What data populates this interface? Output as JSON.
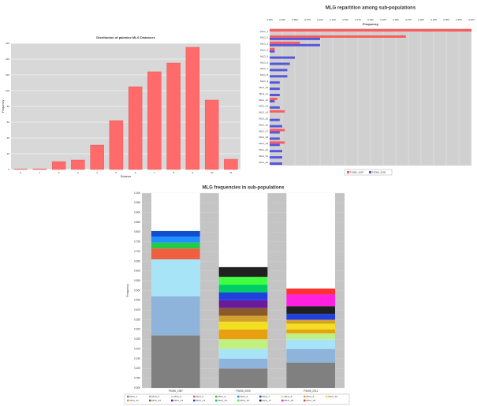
{
  "chart_data": [
    {
      "type": "bar",
      "title": "Distribution of pairwise MLG Distances",
      "x_label": "Distance",
      "y_label": "Frequency",
      "categories": [
        "0",
        "1",
        "2",
        "3",
        "4",
        "5",
        "6",
        "7",
        "8",
        "9",
        "10",
        "11"
      ],
      "values": [
        0.5,
        0.8,
        10,
        12,
        31,
        62,
        105,
        124,
        135,
        155,
        88,
        13
      ],
      "color": "#ff6b6b",
      "ylim": [
        0,
        160
      ],
      "yticks": [
        0,
        20,
        40,
        60,
        80,
        100,
        120,
        140,
        160
      ],
      "grid": true
    },
    {
      "type": "hbar",
      "title": "MLG repartition among sub-populations",
      "x_label": "Frequency",
      "categories": [
        "MLG_1",
        "MLG_2",
        "MLG_3",
        "MLG_4",
        "MLG_5",
        "MLG_6",
        "MLG_7",
        "MLG_8",
        "MLG_9",
        "MLG_10",
        "MLG_11",
        "MLG_12",
        "MLG_13",
        "MLG_14",
        "MLG_15",
        "MLG_16",
        "MLG_17",
        "MLG_18",
        "MLG_19",
        "MLG_20",
        "MLG_21",
        "MLG_22"
      ],
      "series": [
        {
          "name": "FS006_1987",
          "color": "#ff5a5a",
          "values": [
            0.4,
            0.27,
            0.06,
            0.01,
            0,
            0,
            0,
            0,
            0,
            0,
            0,
            0.015,
            0,
            0.03,
            0,
            0,
            0.03,
            0,
            0.03,
            0,
            0,
            0
          ]
        },
        {
          "name": "FS006_2000",
          "color": "#5555dd",
          "values": [
            0,
            0.1,
            0.1,
            0.01,
            0.05,
            0.04,
            0.035,
            0.035,
            0.02,
            0.02,
            0.02,
            0.01,
            0.02,
            0,
            0.02,
            0.025,
            0.02,
            0.02,
            0.02,
            0.025,
            0.025,
            0.025
          ]
        }
      ],
      "xlim": [
        0,
        0.4
      ],
      "xticks": [
        {
          "value": 0,
          "label": "0.000"
        },
        {
          "value": 0.025,
          "label": "0.025"
        },
        {
          "value": 0.05,
          "label": "0.050"
        },
        {
          "value": 0.075,
          "label": "0.075"
        },
        {
          "value": 0.1,
          "label": "0.100"
        },
        {
          "value": 0.125,
          "label": "0.125"
        },
        {
          "value": 0.15,
          "label": "0.150"
        },
        {
          "value": 0.175,
          "label": "0.175"
        },
        {
          "value": 0.2,
          "label": "0.200"
        },
        {
          "value": 0.225,
          "label": "0.225"
        },
        {
          "value": 0.25,
          "label": "0.250"
        },
        {
          "value": 0.275,
          "label": "0.275"
        },
        {
          "value": 0.3,
          "label": "0.300"
        },
        {
          "value": 0.325,
          "label": "0.325"
        },
        {
          "value": 0.35,
          "label": "0.350"
        },
        {
          "value": 0.375,
          "label": "0.375"
        },
        {
          "value": 0.4,
          "label": "0.400"
        }
      ],
      "grid": true
    },
    {
      "type": "stacked_bar",
      "title": "MLG frequencies in sub-populations",
      "y_label": "Frequency",
      "categories": [
        "FS006_1987",
        "FS006_2000",
        "FS006_2011"
      ],
      "series": [
        {
          "name": "MLG_1",
          "color": "#808080",
          "values": [
            0.27,
            0.1,
            0.13
          ]
        },
        {
          "name": "MLG_2",
          "color": "#8fb4dc",
          "values": [
            0.2,
            0.05,
            0.07
          ]
        },
        {
          "name": "MLG_3",
          "color": "#a8e4f8",
          "values": [
            0.19,
            0.05,
            0.05
          ]
        },
        {
          "name": "MLG_4",
          "color": "#f06040",
          "values": [
            0.056,
            0,
            0
          ]
        },
        {
          "name": "MLG_5",
          "color": "#22cc44",
          "values": [
            0.03,
            0,
            0
          ]
        },
        {
          "name": "MLG_6",
          "color": "#1e90ff",
          "values": [
            0.03,
            0,
            0
          ]
        },
        {
          "name": "MLG_7",
          "color": "#1050d0",
          "values": [
            0.03,
            0,
            0
          ]
        },
        {
          "name": "MLG_8",
          "color": "#c0f080",
          "values": [
            0,
            0.05,
            0.03
          ]
        },
        {
          "name": "MLG_9",
          "color": "#e8a010",
          "values": [
            0,
            0.05,
            0.02
          ]
        },
        {
          "name": "MLG_10",
          "color": "#f0e020",
          "values": [
            0,
            0.04,
            0.03
          ]
        },
        {
          "name": "MLG_11",
          "color": "#d4a030",
          "values": [
            0,
            0.03,
            0.02
          ]
        },
        {
          "name": "MLG_12",
          "color": "#8b5a2b",
          "values": [
            0,
            0.04,
            0
          ]
        },
        {
          "name": "MLG_13",
          "color": "#6a1a9a",
          "values": [
            0,
            0.04,
            0
          ]
        },
        {
          "name": "MLG_14",
          "color": "#2040e0",
          "values": [
            0,
            0.04,
            0.03
          ]
        },
        {
          "name": "MLG_15",
          "color": "#00cc66",
          "values": [
            0,
            0.04,
            0
          ]
        },
        {
          "name": "MLG_16",
          "color": "#40ff40",
          "values": [
            0,
            0.04,
            0
          ]
        },
        {
          "name": "MLG_17",
          "color": "#202020",
          "values": [
            0,
            0.05,
            0.04
          ]
        },
        {
          "name": "MLG_18",
          "color": "#ff20e0",
          "values": [
            0,
            0,
            0.06
          ]
        },
        {
          "name": "MLG_19",
          "color": "#ff3030",
          "values": [
            0,
            0,
            0.03
          ]
        }
      ],
      "ylim": [
        0,
        1
      ],
      "yticks": [
        {
          "value": 0,
          "label": "0.000"
        },
        {
          "value": 0.05,
          "label": "0.050"
        },
        {
          "value": 0.1,
          "label": "0.100"
        },
        {
          "value": 0.15,
          "label": "0.150"
        },
        {
          "value": 0.2,
          "label": "0.200"
        },
        {
          "value": 0.25,
          "label": "0.250"
        },
        {
          "value": 0.3,
          "label": "0.300"
        },
        {
          "value": 0.35,
          "label": "0.350"
        },
        {
          "value": 0.4,
          "label": "0.400"
        },
        {
          "value": 0.45,
          "label": "0.450"
        },
        {
          "value": 0.5,
          "label": "0.500"
        },
        {
          "value": 0.55,
          "label": "0.550"
        },
        {
          "value": 0.6,
          "label": "0.600"
        },
        {
          "value": 0.65,
          "label": "0.650"
        },
        {
          "value": 0.7,
          "label": "0.700"
        },
        {
          "value": 0.75,
          "label": "0.750"
        },
        {
          "value": 0.8,
          "label": "0.800"
        },
        {
          "value": 0.85,
          "label": "0.850"
        },
        {
          "value": 0.9,
          "label": "0.900"
        },
        {
          "value": 0.95,
          "label": "0.950"
        },
        {
          "value": 1,
          "label": "1.000"
        }
      ],
      "grid": true
    }
  ]
}
